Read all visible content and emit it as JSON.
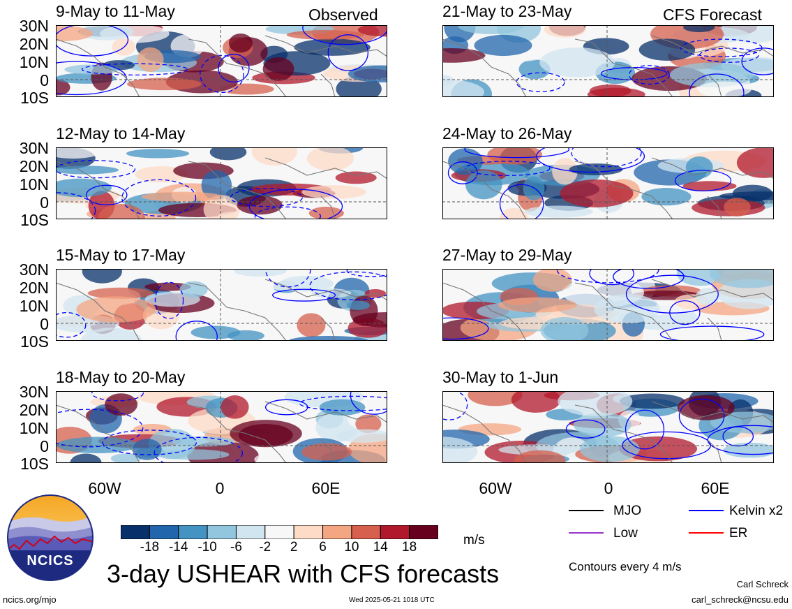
{
  "header": {
    "observed_label": "Observed",
    "forecast_label": "CFS Forecast"
  },
  "panels": [
    {
      "title": "9-May to 11-May",
      "column": "observed",
      "row": 0
    },
    {
      "title": "12-May to 14-May",
      "column": "observed",
      "row": 1
    },
    {
      "title": "15-May to 17-May",
      "column": "observed",
      "row": 2
    },
    {
      "title": "18-May to 20-May",
      "column": "observed",
      "row": 3
    },
    {
      "title": "21-May to 23-May",
      "column": "forecast",
      "row": 0
    },
    {
      "title": "24-May to 26-May",
      "column": "forecast",
      "row": 1
    },
    {
      "title": "27-May to 29-May",
      "column": "forecast",
      "row": 2
    },
    {
      "title": "30-May to 1-Jun",
      "column": "forecast",
      "row": 3
    }
  ],
  "axes": {
    "lat_labels": [
      "30N",
      "20N",
      "10N",
      "0",
      "10S"
    ],
    "lon_labels": [
      "60W",
      "0",
      "60E"
    ]
  },
  "colorbar": {
    "tick_labels": [
      "-18",
      "-14",
      "-10",
      "-6",
      "-2",
      "2",
      "6",
      "10",
      "14",
      "18"
    ],
    "colors": [
      "#08306b",
      "#2166ac",
      "#4393c3",
      "#92c5de",
      "#d1e5f0",
      "#f7f7f7",
      "#fddbc7",
      "#f4a582",
      "#d6604d",
      "#b2182b",
      "#67001f"
    ],
    "units": "m/s"
  },
  "legend": {
    "items": [
      {
        "label": "MJO",
        "color": "#000000"
      },
      {
        "label": "Kelvin x2",
        "color": "#0000ff"
      },
      {
        "label": "Low",
        "color": "#9933cc"
      },
      {
        "label": "ER",
        "color": "#ff0000"
      }
    ],
    "contour_note": "Contours every 4 m/s"
  },
  "footer": {
    "title": "3-day USHEAR with CFS forecasts",
    "logo_text": "NCICS",
    "url": "ncics.org/mjo",
    "timestamp": "Wed 2025-05-21 1018 UTC",
    "author": "Carl Schreck",
    "email": "carl_schreck@ncsu.edu"
  }
}
